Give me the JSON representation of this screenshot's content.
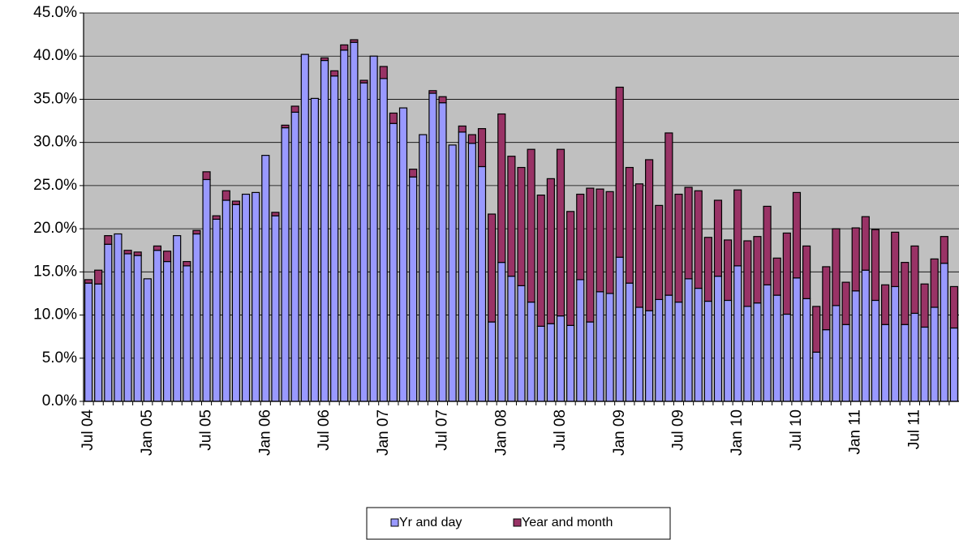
{
  "chart_data": {
    "type": "stacked_bar",
    "categories": [
      "Jul 04",
      null,
      null,
      null,
      null,
      null,
      "Jan 05",
      null,
      null,
      null,
      null,
      null,
      "Jul 05",
      null,
      null,
      null,
      null,
      null,
      "Jan 06",
      null,
      null,
      null,
      null,
      null,
      "Jul 06",
      null,
      null,
      null,
      null,
      null,
      "Jan 07",
      null,
      null,
      null,
      null,
      null,
      "Jul 07",
      null,
      null,
      null,
      null,
      null,
      "Jan 08",
      null,
      null,
      null,
      null,
      null,
      "Jul 08",
      null,
      null,
      null,
      null,
      null,
      "Jan 09",
      null,
      null,
      null,
      null,
      null,
      "Jul 09",
      null,
      null,
      null,
      null,
      null,
      "Jan 10",
      null,
      null,
      null,
      null,
      null,
      "Jul 10",
      null,
      null,
      null,
      null,
      null,
      "Jan 11",
      null,
      null,
      null,
      null,
      null,
      "Jul 11",
      null,
      null,
      null,
      null
    ],
    "series": [
      {
        "name": "Yr and day",
        "color": "#9999ff",
        "values": [
          13.7,
          13.6,
          18.2,
          19.4,
          17.1,
          16.9,
          14.2,
          17.5,
          16.2,
          19.2,
          15.7,
          19.4,
          25.7,
          21.1,
          23.3,
          22.8,
          24.0,
          24.2,
          28.5,
          21.5,
          31.7,
          33.5,
          40.2,
          35.1,
          39.5,
          37.7,
          40.7,
          41.6,
          36.9,
          40.0,
          37.4,
          32.2,
          34.0,
          26.0,
          30.9,
          35.7,
          34.6,
          29.7,
          31.2,
          29.9,
          27.2,
          9.2,
          16.1,
          14.5,
          13.4,
          11.5,
          8.7,
          9.0,
          9.9,
          8.8,
          14.1,
          9.2,
          12.7,
          12.5,
          16.7,
          13.7,
          10.9,
          10.5,
          11.8,
          12.3,
          11.5,
          14.2,
          13.1,
          11.6,
          14.5,
          11.7,
          15.7,
          11.0,
          11.4,
          13.5,
          12.3,
          10.1,
          14.3,
          11.9,
          5.7,
          8.3,
          11.1,
          8.9,
          12.8,
          15.2,
          11.7,
          8.9,
          13.3,
          8.9,
          10.2,
          8.6,
          10.9,
          16.0,
          8.5
        ]
      },
      {
        "name": "Year and month",
        "color": "#993366",
        "values": [
          0.4,
          1.6,
          1.0,
          0,
          0.4,
          0.4,
          0,
          0.5,
          1.2,
          0,
          0.5,
          0.4,
          0.9,
          0.4,
          1.1,
          0.4,
          0,
          0,
          0,
          0.4,
          0.3,
          0.7,
          0,
          0,
          0.3,
          0.6,
          0.6,
          0.3,
          0.3,
          0,
          1.4,
          1.2,
          0,
          0.9,
          0,
          0.3,
          0.7,
          0,
          0.7,
          1.0,
          4.4,
          12.5,
          17.2,
          13.9,
          13.7,
          17.7,
          15.2,
          16.8,
          19.3,
          13.2,
          9.9,
          15.5,
          11.9,
          11.8,
          19.7,
          13.4,
          14.3,
          17.5,
          10.9,
          18.8,
          12.5,
          10.6,
          11.3,
          7.4,
          8.8,
          7.0,
          8.8,
          7.6,
          7.7,
          9.1,
          4.3,
          9.4,
          9.9,
          6.1,
          5.3,
          7.3,
          8.9,
          4.9,
          7.3,
          6.2,
          8.2,
          4.6,
          6.3,
          7.2,
          7.8,
          5.0,
          5.6,
          3.1,
          4.8
        ]
      }
    ],
    "ylim": [
      0,
      45
    ],
    "yticks": [
      {
        "value": 0,
        "label": "0.0%"
      },
      {
        "value": 5,
        "label": "5.0%"
      },
      {
        "value": 10,
        "label": "10.0%"
      },
      {
        "value": 15,
        "label": "15.0%"
      },
      {
        "value": 20,
        "label": "20.0%"
      },
      {
        "value": 25,
        "label": "25.0%"
      },
      {
        "value": 30,
        "label": "30.0%"
      },
      {
        "value": 35,
        "label": "35.0%"
      },
      {
        "value": 40,
        "label": "40.0%"
      },
      {
        "value": 45,
        "label": "45.0%"
      }
    ],
    "grid": true,
    "legend": "bottom"
  }
}
